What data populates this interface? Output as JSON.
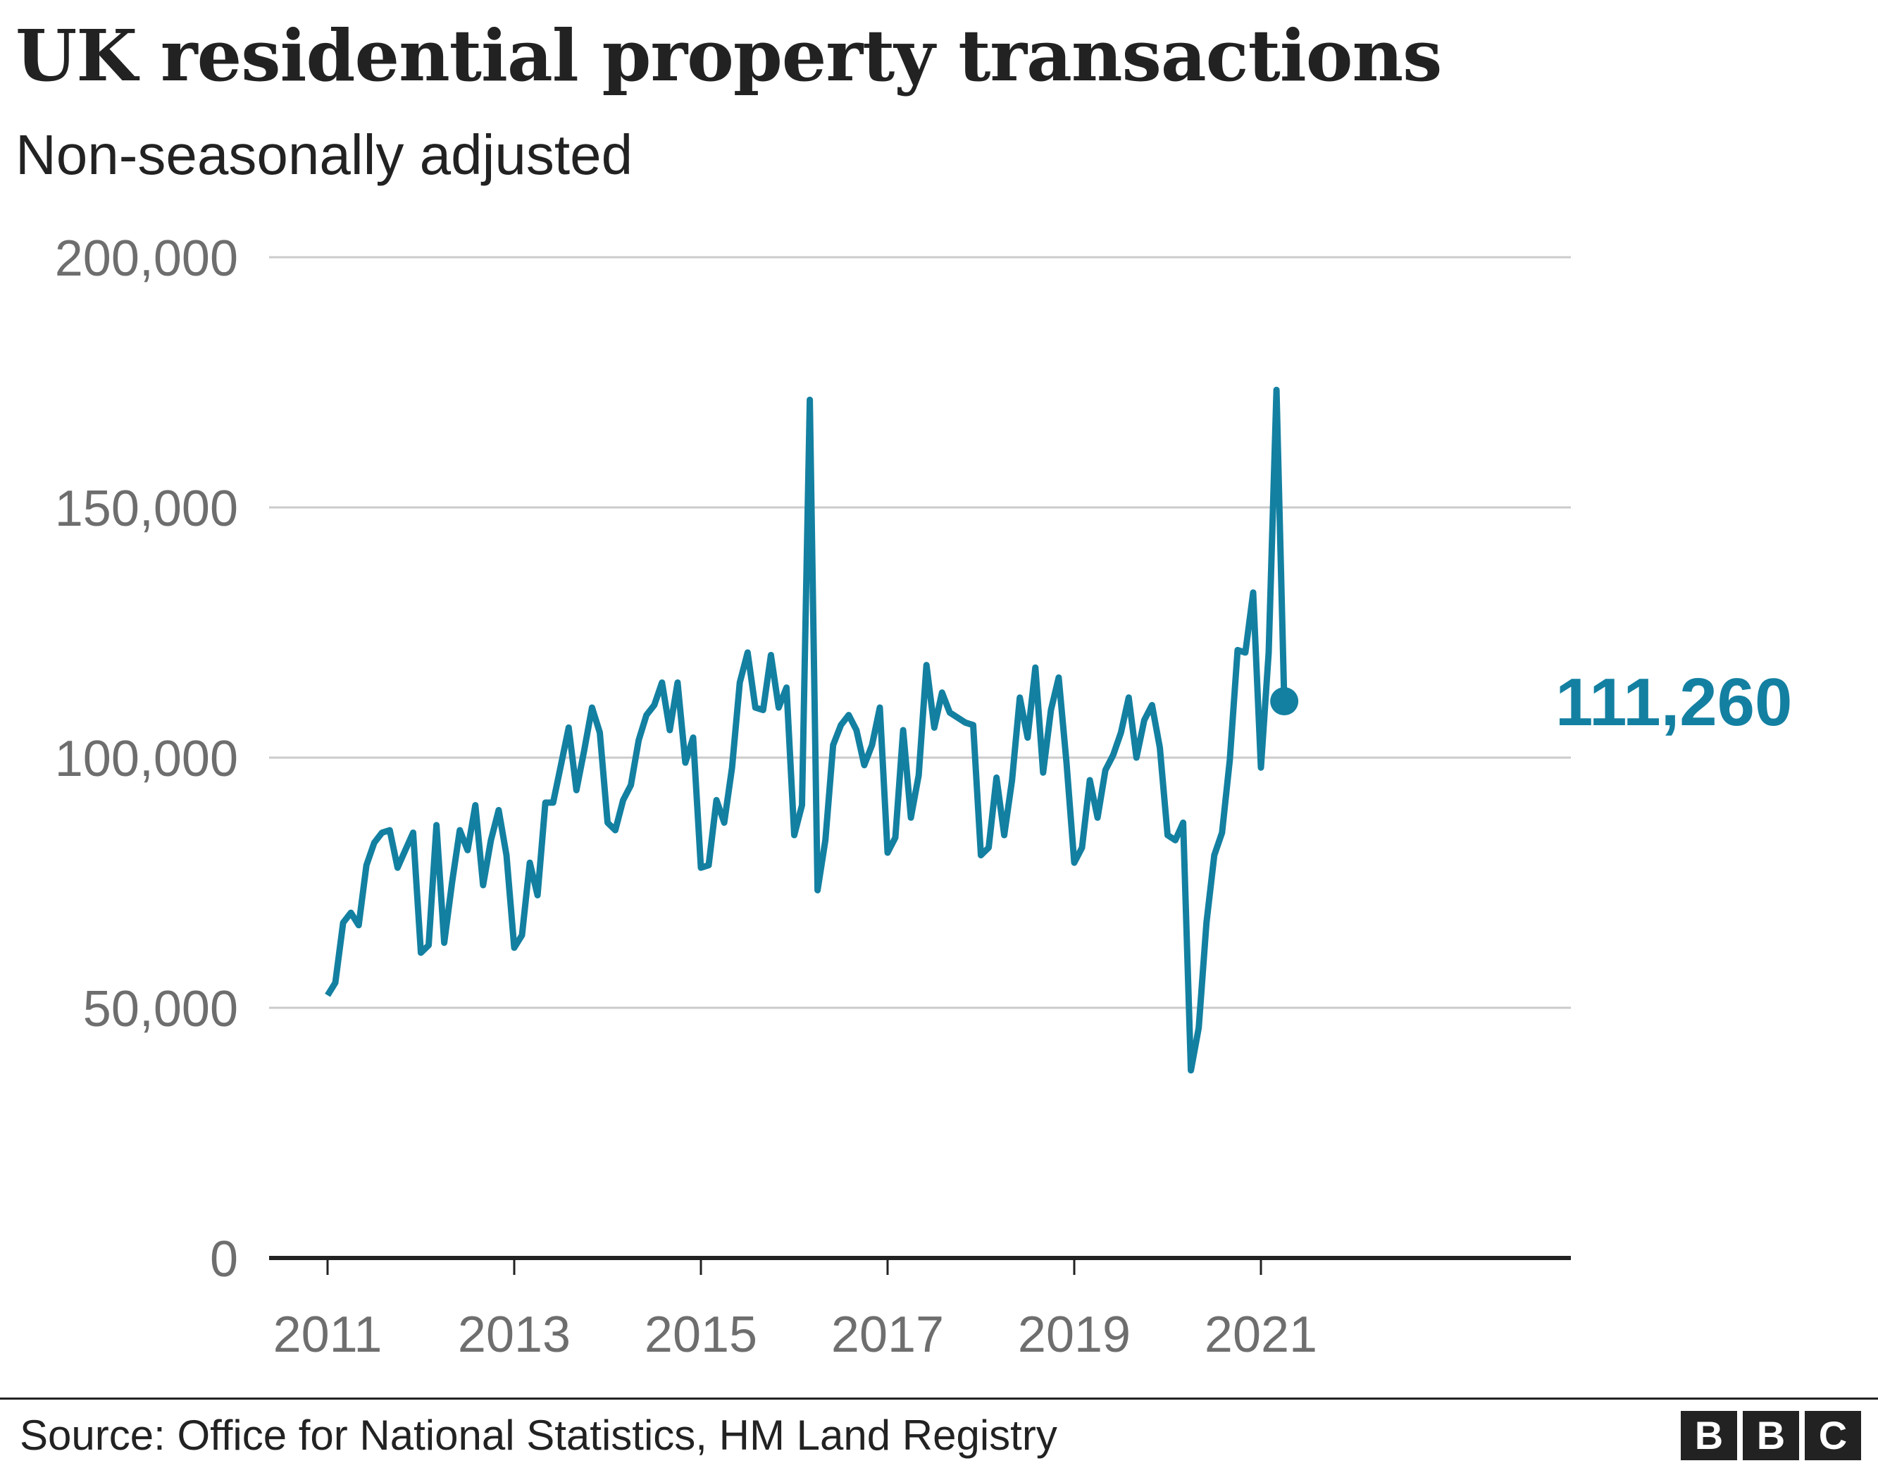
{
  "header": {
    "title": "UK residential property transactions",
    "subtitle": "Non-seasonally adjusted"
  },
  "footer": {
    "source": "Source: Office for National Statistics, HM Land Registry",
    "logo_letters": [
      "B",
      "B",
      "C"
    ]
  },
  "colors": {
    "line": "#1380A1",
    "grid": "#cbcbcb",
    "axis": "#222222",
    "tick_text": "#6e6e6e"
  },
  "chart_data": {
    "type": "line",
    "title": "UK residential property transactions",
    "subtitle": "Non-seasonally adjusted",
    "xlabel": "",
    "ylabel": "",
    "x_ticks": [
      2011,
      2013,
      2015,
      2017,
      2019,
      2021
    ],
    "x_tick_labels": [
      "2011",
      "2013",
      "2015",
      "2017",
      "2019",
      "2021"
    ],
    "y_ticks": [
      0,
      50000,
      100000,
      150000,
      200000
    ],
    "y_tick_labels": [
      "0",
      "50,000",
      "100,000",
      "150,000",
      "200,000"
    ],
    "ylim": [
      0,
      200000
    ],
    "xlim": [
      2010.5,
      2021.75
    ],
    "grid": true,
    "frequency": "monthly",
    "series": [
      {
        "start": "2011-01",
        "end": "2021-04",
        "values": [
          52500,
          55000,
          67000,
          69000,
          66500,
          78500,
          83000,
          85000,
          85500,
          78000,
          81500,
          85000,
          61000,
          62500,
          86500,
          63000,
          75000,
          85500,
          81500,
          90500,
          74500,
          83500,
          89500,
          80500,
          62000,
          64500,
          79000,
          72500,
          91000,
          91000,
          98500,
          106000,
          93500,
          101500,
          110000,
          105000,
          87000,
          85500,
          91500,
          94500,
          103500,
          108500,
          110500,
          115000,
          105500,
          115000,
          99000,
          104000,
          78000,
          78500,
          91500,
          87000,
          98000,
          115000,
          121000,
          110000,
          109500,
          120500,
          110000,
          114000,
          84500,
          90500,
          171500,
          73500,
          83500,
          102500,
          106500,
          108500,
          105500,
          98500,
          102500,
          110000,
          81000,
          84000,
          105500,
          88000,
          96500,
          118500,
          106000,
          113000,
          109000,
          108000,
          107000,
          106500,
          80500,
          82000,
          96000,
          84500,
          95500,
          112000,
          104000,
          118000,
          97000,
          109500,
          116000,
          99000,
          79000,
          82000,
          95500,
          88000,
          97500,
          100500,
          105000,
          112000,
          100000,
          107500,
          110500,
          102000,
          84500,
          83500,
          87000,
          37500,
          46000,
          67000,
          80500,
          85000,
          99500,
          121500,
          121000,
          133000,
          98000,
          121000,
          173500,
          111260
        ]
      }
    ],
    "annotations": [
      {
        "text": "111,260",
        "x": "2021-04",
        "y": 111260
      }
    ]
  }
}
